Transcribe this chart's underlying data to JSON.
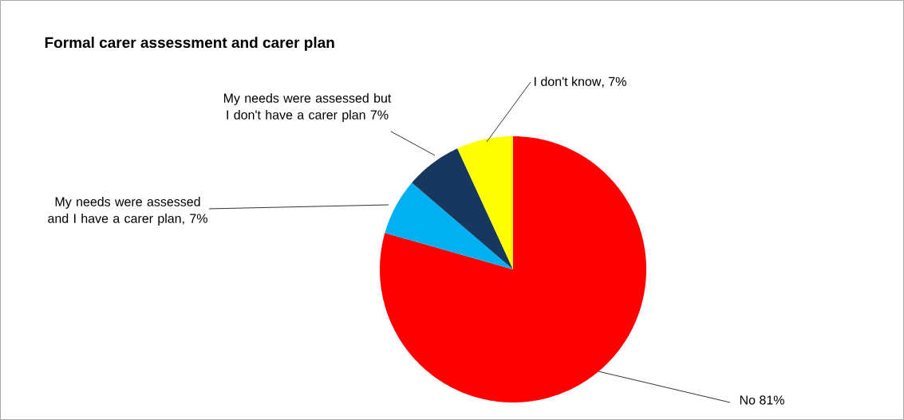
{
  "chart_data": {
    "type": "pie",
    "title": "Formal carer assessment and carer plan",
    "categories": [
      "No",
      "My needs were assessed and I have a carer plan",
      "My needs were assessed but I don't have a carer plan",
      "I don't know"
    ],
    "values": [
      81,
      7,
      7,
      7
    ],
    "value_labels": [
      "81%",
      ", 7%",
      "7%",
      ", 7%"
    ],
    "colors": [
      "#ff0000",
      "#00b0f0",
      "#17375e",
      "#ffff00"
    ]
  }
}
